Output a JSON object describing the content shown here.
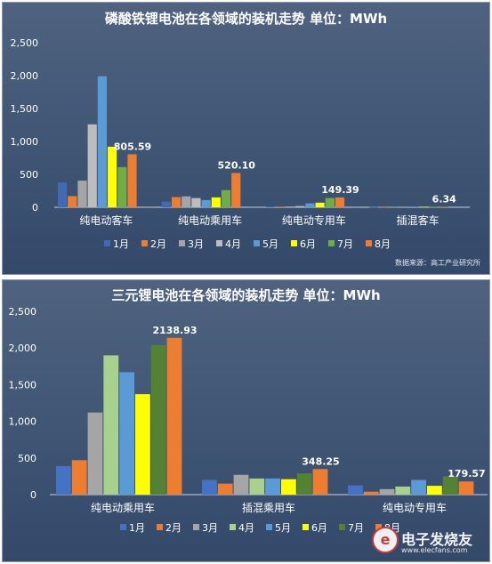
{
  "chart_data": [
    {
      "type": "bar",
      "title": "磷酸铁锂电池在各领域的装机走势 单位：MWh",
      "categories": [
        "纯电动客车",
        "纯电动乘用车",
        "纯电动专用车",
        "插混客车"
      ],
      "ylim": [
        0,
        2500
      ],
      "yticks": [
        "0",
        "500",
        "1,000",
        "1,500",
        "2,000",
        "2,500"
      ],
      "ytick_values": [
        0,
        500,
        1000,
        1500,
        2000,
        2500
      ],
      "grid": false,
      "legend_position": "bottom",
      "series": [
        {
          "name": "1月",
          "color": "#3e6bb4",
          "values": [
            375,
            85,
            10,
            3
          ]
        },
        {
          "name": "2月",
          "color": "#ed7d31",
          "values": [
            170,
            155,
            8,
            3
          ]
        },
        {
          "name": "3月",
          "color": "#a5a5a5",
          "values": [
            405,
            165,
            12,
            4
          ]
        },
        {
          "name": "4月",
          "color": "#bdbdbd",
          "values": [
            1260,
            140,
            18,
            5
          ]
        },
        {
          "name": "5月",
          "color": "#5b9bd5",
          "values": [
            1990,
            110,
            60,
            10
          ]
        },
        {
          "name": "6月",
          "color": "#ffff00",
          "values": [
            920,
            150,
            70,
            8
          ]
        },
        {
          "name": "7月",
          "color": "#70ad47",
          "values": [
            610,
            260,
            140,
            5
          ]
        },
        {
          "name": "8月",
          "color": "#ed7d31",
          "values": [
            805.59,
            520.1,
            149.39,
            6.34
          ]
        }
      ],
      "data_labels": [
        "805.59",
        "520.10",
        "149.39",
        "6.34"
      ],
      "source": "数据来源：高工产业研究所"
    },
    {
      "type": "bar",
      "title": "三元锂电池在各领域的装机走势 单位：MWh",
      "categories": [
        "纯电动乘用车",
        "插混乘用车",
        "纯电动专用车"
      ],
      "ylim": [
        0,
        2500
      ],
      "yticks": [
        "0",
        "500",
        "1,000",
        "1,500",
        "2,000",
        "2,500"
      ],
      "ytick_values": [
        0,
        500,
        1000,
        1500,
        2000,
        2500
      ],
      "grid": false,
      "legend_position": "bottom",
      "series": [
        {
          "name": "1月",
          "color": "#4472c4",
          "values": [
            390,
            200,
            125
          ]
        },
        {
          "name": "2月",
          "color": "#ed7d31",
          "values": [
            470,
            150,
            40
          ]
        },
        {
          "name": "3月",
          "color": "#a5a5a5",
          "values": [
            1120,
            270,
            75
          ]
        },
        {
          "name": "4月",
          "color": "#a9d18e",
          "values": [
            1900,
            220,
            110
          ]
        },
        {
          "name": "5月",
          "color": "#5b9bd5",
          "values": [
            1670,
            220,
            200
          ]
        },
        {
          "name": "6月",
          "color": "#ffff00",
          "values": [
            1370,
            210,
            120
          ]
        },
        {
          "name": "7月",
          "color": "#548235",
          "values": [
            2040,
            290,
            250
          ]
        },
        {
          "name": "8月",
          "color": "#ed7d31",
          "values": [
            2138.93,
            348.25,
            179.57
          ]
        }
      ],
      "data_labels": [
        "2138.93",
        "348.25",
        "179.57"
      ]
    }
  ],
  "watermark": {
    "text": "电子发烧友",
    "url": "www.elecfans.com"
  }
}
